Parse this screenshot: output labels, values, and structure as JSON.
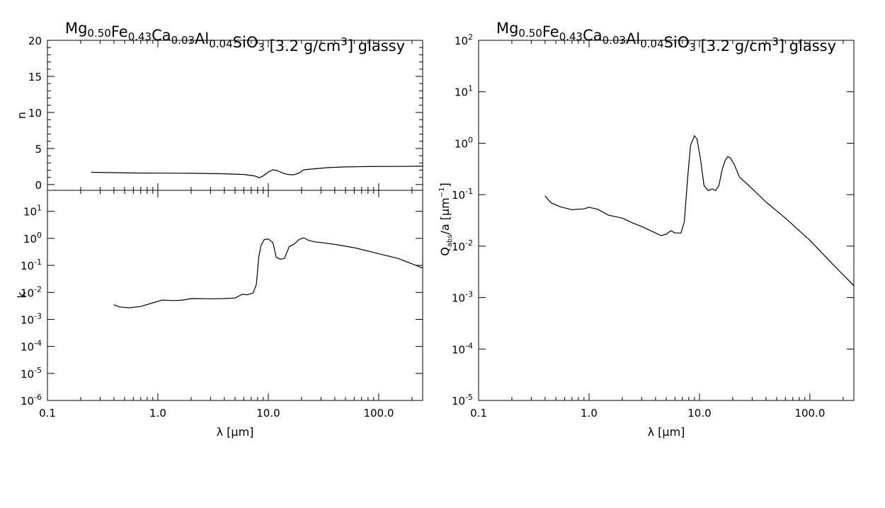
{
  "chart_data": [
    {
      "id": "n-panel",
      "type": "line",
      "title": {
        "base": "Mg",
        "parts": [
          {
            "t": "Mg",
            "s": "0.50"
          },
          {
            "t": "Fe",
            "s": "0.43"
          },
          {
            "t": "Ca",
            "s": "0.03"
          },
          {
            "t": "Al",
            "s": "0.04"
          },
          {
            "t": "SiO",
            "s": "3"
          }
        ],
        "tail": " [3.2 g/cm",
        "tail_sup": "3",
        "tail_end": "] glassy"
      },
      "xscale": "log",
      "xlim": [
        0.1,
        250
      ],
      "ylabel": "n",
      "yscale": "linear",
      "ylim": [
        -0.8,
        20
      ],
      "yticks": [
        0,
        5,
        10,
        15,
        20
      ],
      "grid": false,
      "series": [
        {
          "x": [
            0.25,
            0.4,
            0.6,
            1.0,
            2.0,
            4.0,
            6.0,
            7.5,
            8.3,
            9.0,
            10.0,
            11.0,
            12.0,
            13.5,
            15.0,
            17.0,
            19.0,
            21.0,
            23.0,
            27.0,
            35.0,
            50.0,
            80.0,
            150.0,
            250.0
          ],
          "y": [
            1.7,
            1.65,
            1.6,
            1.58,
            1.56,
            1.5,
            1.4,
            1.2,
            0.95,
            1.2,
            1.75,
            2.05,
            1.95,
            1.6,
            1.4,
            1.35,
            1.6,
            2.05,
            2.1,
            2.2,
            2.35,
            2.45,
            2.5,
            2.52,
            2.55
          ]
        }
      ]
    },
    {
      "id": "k-panel",
      "type": "line",
      "xscale": "log",
      "xlim": [
        0.1,
        250
      ],
      "xlabel": "λ [μm]",
      "xticks": [
        0.1,
        1.0,
        10.0,
        100.0
      ],
      "xticklabels": [
        "0.1",
        "1.0",
        "10.0",
        "100.0"
      ],
      "ylabel": "k",
      "yscale": "log",
      "ylim": [
        1e-06,
        60
      ],
      "yticks_exp": [
        -6,
        -5,
        -4,
        -3,
        -2,
        -1,
        0,
        1
      ],
      "grid": false,
      "series": [
        {
          "x": [
            0.4,
            0.45,
            0.55,
            0.7,
            0.9,
            1.1,
            1.4,
            1.7,
            2.0,
            3.0,
            4.0,
            5.0,
            5.8,
            6.5,
            7.3,
            7.8,
            8.2,
            8.6,
            9.2,
            10.0,
            11.0,
            11.8,
            12.8,
            14.0,
            15.5,
            17.0,
            19.0,
            21.0,
            23.0,
            26.0,
            30.0,
            40.0,
            60.0,
            100.0,
            150.0,
            250.0
          ],
          "y": [
            0.0035,
            0.0029,
            0.0027,
            0.003,
            0.0041,
            0.0052,
            0.005,
            0.0052,
            0.0059,
            0.0058,
            0.0059,
            0.0062,
            0.0085,
            0.0082,
            0.0095,
            0.02,
            0.2,
            0.55,
            0.9,
            0.95,
            0.7,
            0.2,
            0.17,
            0.18,
            0.5,
            0.6,
            0.9,
            1.05,
            0.85,
            0.75,
            0.7,
            0.6,
            0.45,
            0.27,
            0.18,
            0.08
          ]
        }
      ]
    },
    {
      "id": "q-panel",
      "type": "line",
      "title": {
        "base": "Mg",
        "parts": [
          {
            "t": "Mg",
            "s": "0.50"
          },
          {
            "t": "Fe",
            "s": "0.43"
          },
          {
            "t": "Ca",
            "s": "0.03"
          },
          {
            "t": "Al",
            "s": "0.04"
          },
          {
            "t": "SiO",
            "s": "3"
          }
        ],
        "tail": " [3.2 g/cm",
        "tail_sup": "3",
        "tail_end": "] glassy"
      },
      "xscale": "log",
      "xlim": [
        0.1,
        250
      ],
      "xlabel": "λ [μm]",
      "xticks": [
        0.1,
        1.0,
        10.0,
        100.0
      ],
      "xticklabels": [
        "0.1",
        "1.0",
        "10.0",
        "100.0"
      ],
      "ylabel": "Q_abs/a [μm^-1]",
      "yscale": "log",
      "ylim": [
        1e-05,
        100
      ],
      "yticks_exp": [
        -5,
        -4,
        -3,
        -2,
        -1,
        0,
        1,
        2
      ],
      "grid": false,
      "series": [
        {
          "x": [
            0.4,
            0.45,
            0.55,
            0.7,
            0.9,
            1.0,
            1.2,
            1.5,
            2.0,
            2.5,
            3.0,
            4.0,
            4.5,
            5.0,
            5.5,
            6.0,
            6.8,
            7.3,
            7.8,
            8.3,
            9.0,
            9.5,
            10.2,
            11.0,
            12.0,
            13.0,
            14.0,
            15.0,
            16.0,
            17.0,
            18.0,
            19.0,
            20.5,
            23.0,
            28.0,
            40.0,
            60.0,
            100.0,
            160.0,
            250.0
          ],
          "y": [
            0.095,
            0.07,
            0.058,
            0.051,
            0.053,
            0.057,
            0.052,
            0.04,
            0.035,
            0.028,
            0.024,
            0.018,
            0.016,
            0.017,
            0.02,
            0.018,
            0.018,
            0.03,
            0.2,
            0.9,
            1.4,
            1.2,
            0.5,
            0.15,
            0.12,
            0.13,
            0.12,
            0.15,
            0.3,
            0.45,
            0.55,
            0.52,
            0.4,
            0.22,
            0.15,
            0.072,
            0.035,
            0.013,
            0.0045,
            0.0017
          ]
        }
      ]
    }
  ]
}
